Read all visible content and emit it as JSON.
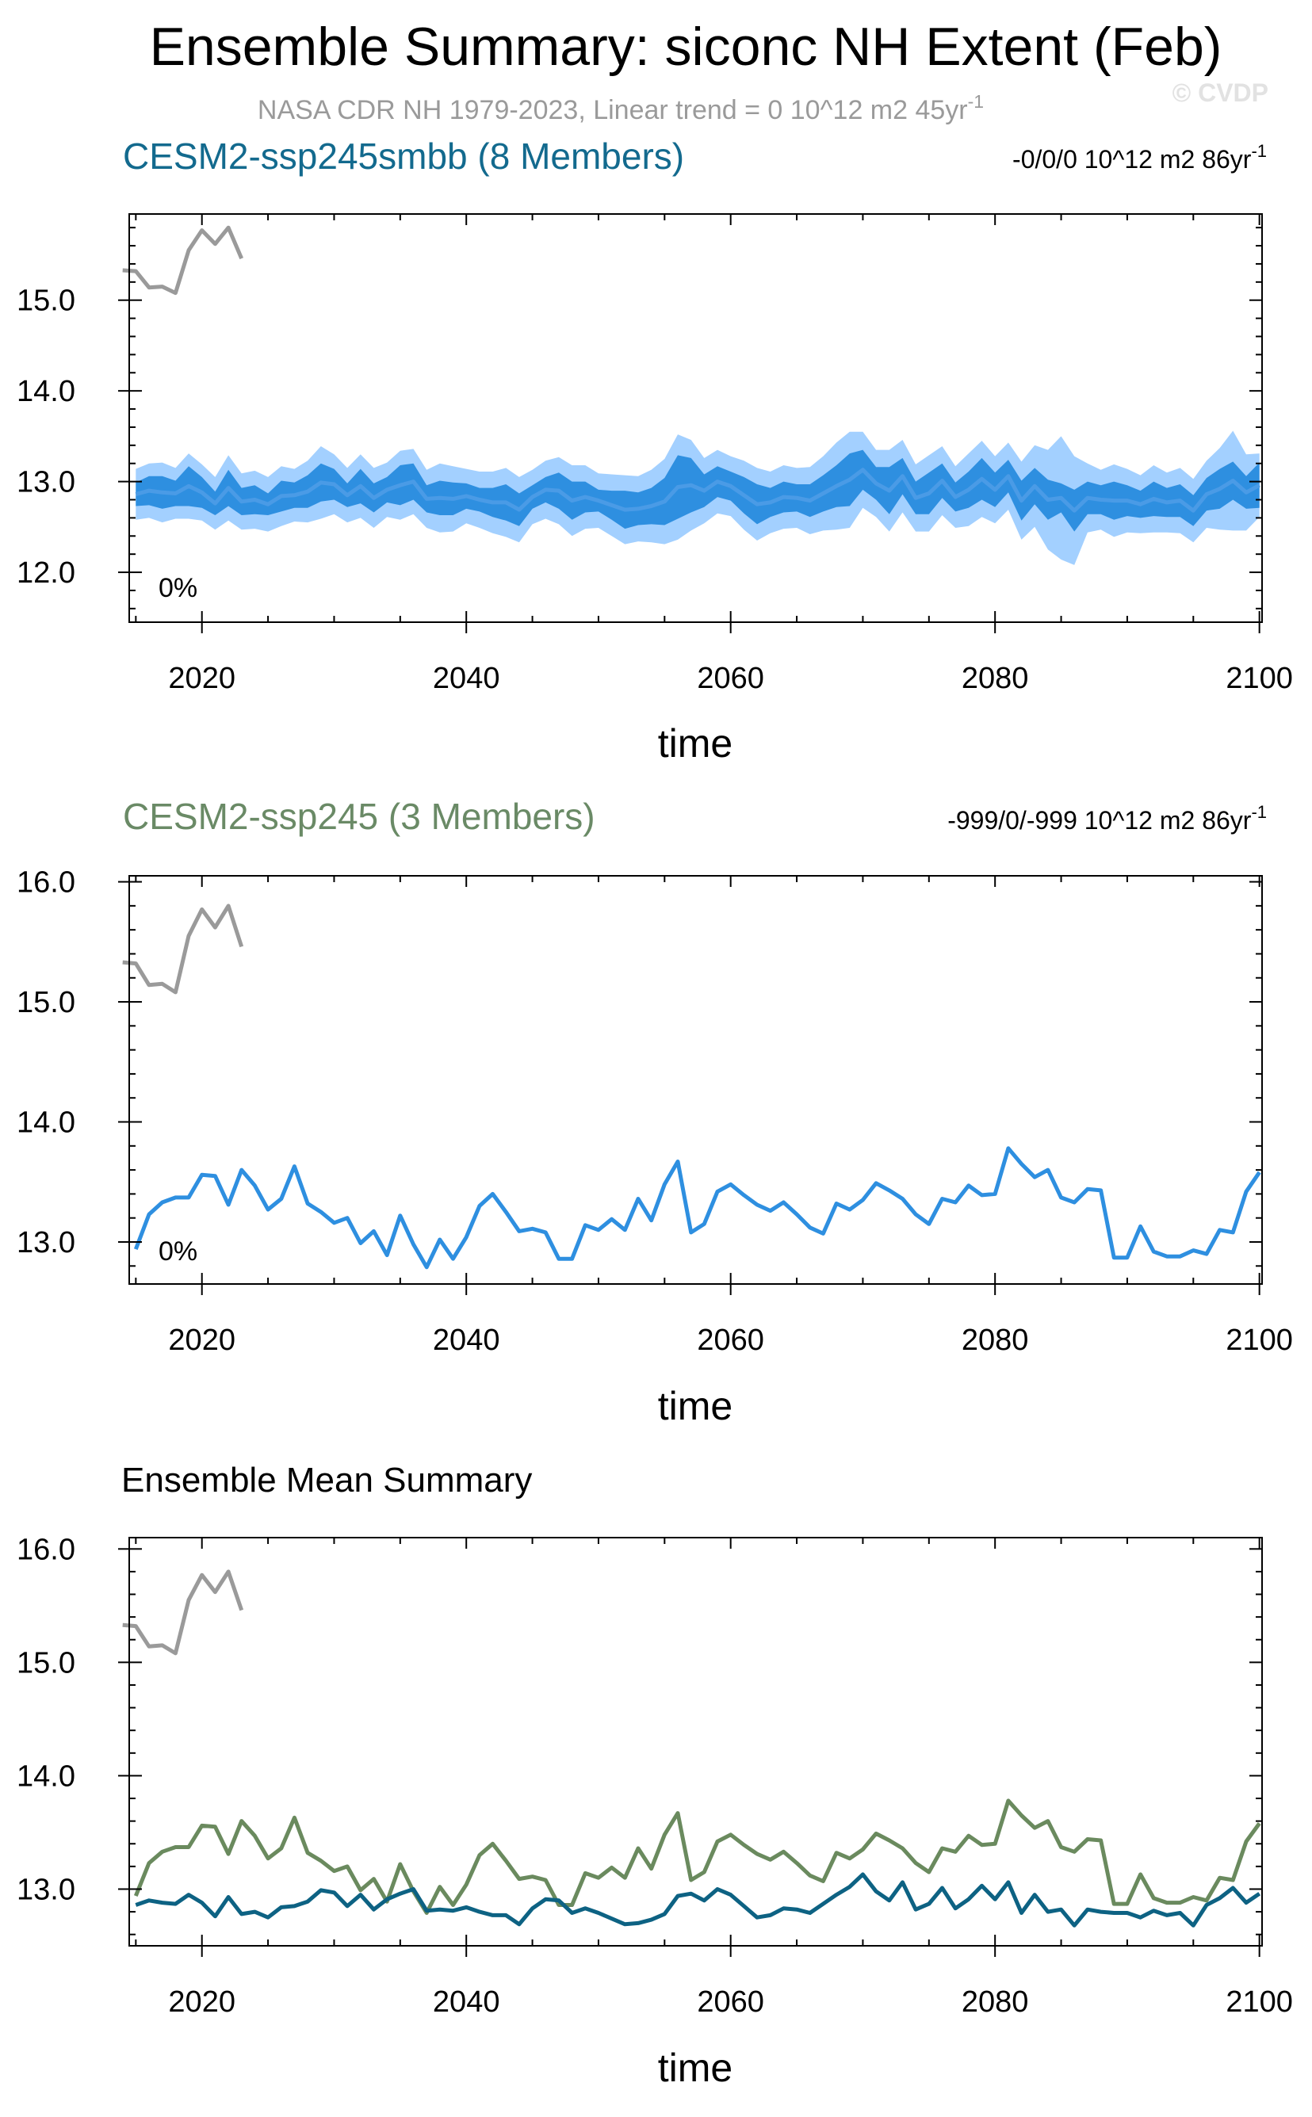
{
  "header": {
    "title": "Ensemble Summary: siconc NH Extent (Feb)",
    "subtitle": "NASA CDR NH 1979-2023, Linear trend = 0 10^12 m2 45yr",
    "subtitle_sup": "-1",
    "watermark": "© CVDP"
  },
  "colors": {
    "obs": "#9a9a9a",
    "smbb_mean": "#2e8fe0",
    "smbb_outer": "#a3d0ff",
    "smbb_inner": "#2e8fe0",
    "smbb_title": "#136a8e",
    "ssp245_title": "#6a8a66",
    "ssp245_line": "#2e8fe0",
    "mean_smbb": "#0d6283",
    "mean_ssp245": "#6a8a5e",
    "axis": "#000000"
  },
  "chart_data": [
    {
      "type": "line",
      "name": "panel1",
      "title": "CESM2-ssp245smbb (8 Members)",
      "trend": "-0/0/0 10^12 m2 86yr",
      "trend_sup": "-1",
      "percent": "0%",
      "xlabel": "time",
      "ylabel": "",
      "xlim": [
        2014.5,
        2100.2
      ],
      "ylim": [
        11.45,
        15.95
      ],
      "xticks": [
        2020,
        2040,
        2060,
        2080,
        2100
      ],
      "yticks": [
        12.0,
        13.0,
        14.0,
        15.0
      ],
      "ytick_labels": [
        "12.0",
        "13.0",
        "14.0",
        "15.0"
      ],
      "obs": {
        "x": [
          2014,
          2015,
          2016,
          2017,
          2018,
          2019,
          2020,
          2021,
          2022,
          2023
        ],
        "values": [
          15.33,
          15.32,
          15.14,
          15.15,
          15.08,
          15.55,
          15.77,
          15.62,
          15.8,
          15.46
        ]
      },
      "mean": {
        "x": [
          2015,
          2016,
          2017,
          2018,
          2019,
          2020,
          2021,
          2022,
          2023,
          2024,
          2025,
          2026,
          2027,
          2028,
          2029,
          2030,
          2031,
          2032,
          2033,
          2034,
          2035,
          2036,
          2037,
          2038,
          2039,
          2040,
          2041,
          2042,
          2043,
          2044,
          2045,
          2046,
          2047,
          2048,
          2049,
          2050,
          2051,
          2052,
          2053,
          2054,
          2055,
          2056,
          2057,
          2058,
          2059,
          2060,
          2061,
          2062,
          2063,
          2064,
          2065,
          2066,
          2067,
          2068,
          2069,
          2070,
          2071,
          2072,
          2073,
          2074,
          2075,
          2076,
          2077,
          2078,
          2079,
          2080,
          2081,
          2082,
          2083,
          2084,
          2085,
          2086,
          2087,
          2088,
          2089,
          2090,
          2091,
          2092,
          2093,
          2094,
          2095,
          2096,
          2097,
          2098,
          2099,
          2100
        ],
        "values": [
          12.86,
          12.9,
          12.88,
          12.87,
          12.95,
          12.88,
          12.76,
          12.93,
          12.78,
          12.8,
          12.75,
          12.84,
          12.85,
          12.89,
          12.99,
          12.97,
          12.85,
          12.95,
          12.82,
          12.91,
          12.96,
          13.0,
          12.81,
          12.82,
          12.81,
          12.84,
          12.8,
          12.77,
          12.77,
          12.69,
          12.83,
          12.91,
          12.9,
          12.79,
          12.83,
          12.79,
          12.74,
          12.69,
          12.7,
          12.73,
          12.78,
          12.94,
          12.96,
          12.9,
          13.0,
          12.95,
          12.85,
          12.75,
          12.77,
          12.83,
          12.82,
          12.79,
          12.87,
          12.95,
          13.02,
          13.13,
          12.98,
          12.9,
          13.06,
          12.82,
          12.87,
          13.01,
          12.83,
          12.91,
          13.03,
          12.91,
          13.06,
          12.79,
          12.95,
          12.8,
          12.82,
          12.68,
          12.82,
          12.8,
          12.79,
          12.79,
          12.75,
          12.81,
          12.77,
          12.79,
          12.68,
          12.86,
          12.92,
          13.01,
          12.88,
          12.96
        ]
      },
      "inner_halfwidth": [
        0.13,
        0.16,
        0.18,
        0.14,
        0.22,
        0.17,
        0.13,
        0.2,
        0.15,
        0.16,
        0.12,
        0.17,
        0.14,
        0.18,
        0.21,
        0.17,
        0.13,
        0.19,
        0.16,
        0.14,
        0.22,
        0.2,
        0.15,
        0.19,
        0.18,
        0.14,
        0.13,
        0.16,
        0.2,
        0.18,
        0.13,
        0.14,
        0.2,
        0.21,
        0.17,
        0.12,
        0.16,
        0.21,
        0.18,
        0.2,
        0.26,
        0.35,
        0.3,
        0.18,
        0.17,
        0.16,
        0.2,
        0.22,
        0.16,
        0.17,
        0.15,
        0.18,
        0.2,
        0.23,
        0.29,
        0.22,
        0.18,
        0.26,
        0.2,
        0.18,
        0.23,
        0.19,
        0.16,
        0.2,
        0.23,
        0.19,
        0.18,
        0.22,
        0.2,
        0.22,
        0.16,
        0.23,
        0.18,
        0.16,
        0.21,
        0.17,
        0.15,
        0.19,
        0.16,
        0.18,
        0.17,
        0.18,
        0.22,
        0.21,
        0.18,
        0.25
      ],
      "outer_halfwidth": [
        0.28,
        0.3,
        0.33,
        0.28,
        0.36,
        0.31,
        0.29,
        0.36,
        0.31,
        0.32,
        0.3,
        0.33,
        0.29,
        0.34,
        0.4,
        0.33,
        0.3,
        0.35,
        0.33,
        0.3,
        0.38,
        0.36,
        0.32,
        0.38,
        0.36,
        0.3,
        0.31,
        0.34,
        0.38,
        0.36,
        0.3,
        0.32,
        0.37,
        0.39,
        0.35,
        0.3,
        0.34,
        0.38,
        0.36,
        0.4,
        0.47,
        0.58,
        0.5,
        0.36,
        0.35,
        0.33,
        0.38,
        0.4,
        0.34,
        0.35,
        0.33,
        0.37,
        0.41,
        0.48,
        0.53,
        0.42,
        0.37,
        0.45,
        0.4,
        0.37,
        0.42,
        0.38,
        0.34,
        0.4,
        0.42,
        0.37,
        0.37,
        0.43,
        0.45,
        0.55,
        0.68,
        0.6,
        0.38,
        0.33,
        0.4,
        0.35,
        0.32,
        0.37,
        0.33,
        0.36,
        0.35,
        0.37,
        0.45,
        0.55,
        0.42,
        0.35
      ]
    },
    {
      "type": "line",
      "name": "panel2",
      "title": "CESM2-ssp245 (3 Members)",
      "trend": "-999/0/-999 10^12 m2 86yr",
      "trend_sup": "-1",
      "percent": "0%",
      "xlabel": "time",
      "ylabel": "",
      "xlim": [
        2014.5,
        2100.2
      ],
      "ylim": [
        12.65,
        16.05
      ],
      "xticks": [
        2020,
        2040,
        2060,
        2080,
        2100
      ],
      "yticks": [
        13.0,
        14.0,
        15.0,
        16.0
      ],
      "ytick_labels": [
        "13.0",
        "14.0",
        "15.0",
        "16.0"
      ],
      "obs": {
        "x": [
          2014,
          2015,
          2016,
          2017,
          2018,
          2019,
          2020,
          2021,
          2022,
          2023
        ],
        "values": [
          15.33,
          15.32,
          15.14,
          15.15,
          15.08,
          15.55,
          15.77,
          15.62,
          15.8,
          15.46
        ]
      },
      "series": [
        {
          "x": [
            2015,
            2016,
            2017,
            2018,
            2019,
            2020,
            2021,
            2022,
            2023,
            2024,
            2025,
            2026,
            2027,
            2028,
            2029,
            2030,
            2031,
            2032,
            2033,
            2034,
            2035,
            2036,
            2037,
            2038,
            2039,
            2040,
            2041,
            2042,
            2043,
            2044,
            2045,
            2046,
            2047,
            2048,
            2049,
            2050,
            2051,
            2052,
            2053,
            2054,
            2055,
            2056,
            2057,
            2058,
            2059,
            2060,
            2061,
            2062,
            2063,
            2064,
            2065,
            2066,
            2067,
            2068,
            2069,
            2070,
            2071,
            2072,
            2073,
            2074,
            2075,
            2076,
            2077,
            2078,
            2079,
            2080,
            2081,
            2082,
            2083,
            2084,
            2085,
            2086,
            2087,
            2088,
            2089,
            2090,
            2091,
            2092,
            2093,
            2094,
            2095,
            2096,
            2097,
            2098,
            2099,
            2100
          ],
          "values": [
            12.94,
            13.23,
            13.33,
            13.37,
            13.37,
            13.56,
            13.55,
            13.31,
            13.6,
            13.47,
            13.27,
            13.36,
            13.63,
            13.32,
            13.25,
            13.16,
            13.2,
            12.99,
            13.09,
            12.89,
            13.22,
            12.98,
            12.79,
            13.02,
            12.86,
            13.04,
            13.3,
            13.4,
            13.25,
            13.09,
            13.11,
            13.08,
            12.86,
            12.86,
            13.14,
            13.1,
            13.19,
            13.1,
            13.36,
            13.18,
            13.48,
            13.67,
            13.08,
            13.15,
            13.42,
            13.48,
            13.39,
            13.31,
            13.26,
            13.33,
            13.23,
            13.12,
            13.07,
            13.32,
            13.27,
            13.35,
            13.49,
            13.43,
            13.36,
            13.23,
            13.15,
            13.36,
            13.33,
            13.47,
            13.39,
            13.4,
            13.78,
            13.65,
            13.54,
            13.6,
            13.37,
            13.33,
            13.44,
            13.43,
            12.87,
            12.87,
            13.13,
            12.92,
            12.88,
            12.88,
            12.93,
            12.9,
            13.1,
            13.08,
            13.42,
            13.58
          ]
        }
      ]
    },
    {
      "type": "line",
      "name": "panel3",
      "title": "Ensemble Mean Summary",
      "xlabel": "time",
      "ylabel": "",
      "xlim": [
        2014.5,
        2100.2
      ],
      "ylim": [
        12.5,
        16.1
      ],
      "xticks": [
        2020,
        2040,
        2060,
        2080,
        2100
      ],
      "yticks": [
        13.0,
        14.0,
        15.0,
        16.0
      ],
      "ytick_labels": [
        "13.0",
        "14.0",
        "15.0",
        "16.0"
      ],
      "obs": {
        "x": [
          2014,
          2015,
          2016,
          2017,
          2018,
          2019,
          2020,
          2021,
          2022,
          2023
        ],
        "values": [
          15.33,
          15.32,
          15.14,
          15.15,
          15.08,
          15.55,
          15.77,
          15.62,
          15.8,
          15.46
        ]
      },
      "series_refs": [
        "panel1.mean",
        "panel2.series.0"
      ]
    }
  ]
}
